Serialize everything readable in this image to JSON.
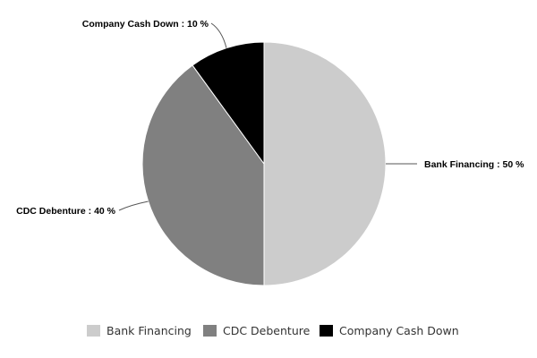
{
  "chart_data": {
    "type": "pie",
    "title": "",
    "categories": [
      "Bank Financing",
      "CDC Debenture",
      "Company Cash Down"
    ],
    "values": [
      50,
      40,
      10
    ],
    "unit": "%",
    "colors": [
      "#cccccc",
      "#808080",
      "#000000"
    ],
    "data_labels": [
      "Bank Financing : 50 %",
      "CDC Debenture : 40 %",
      "Company Cash Down : 10 %"
    ],
    "legend": {
      "position": "bottom",
      "entries": [
        "Bank Financing",
        "CDC Debenture",
        "Company Cash Down"
      ]
    }
  }
}
